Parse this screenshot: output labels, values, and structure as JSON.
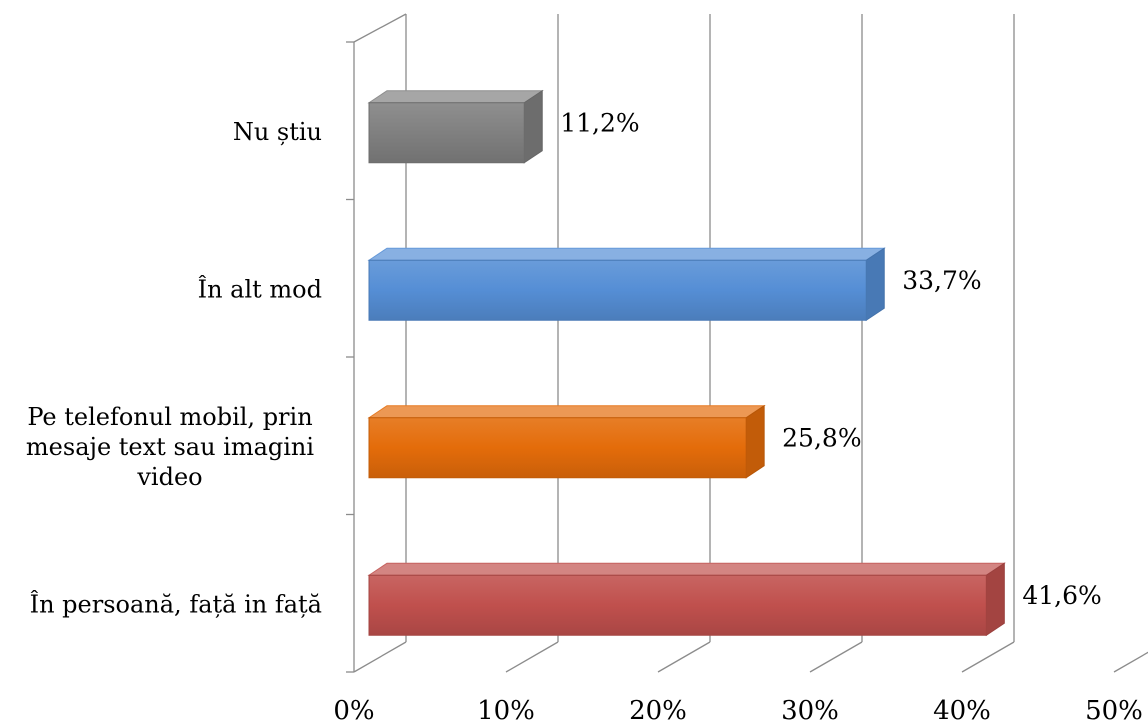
{
  "chart_data": {
    "type": "bar",
    "orientation": "horizontal",
    "style": "3d",
    "categories": [
      "Nu știu",
      "În alt mod",
      "Pe telefonul mobil, prin mesaje text sau imagini video",
      "În persoană, față in față"
    ],
    "category_lines": [
      [
        "Nu știu"
      ],
      [
        "În alt mod"
      ],
      [
        "Pe telefonul mobil, prin",
        "mesaje text sau imagini",
        "video"
      ],
      [
        "În persoană, față in față"
      ]
    ],
    "values": [
      11.2,
      33.7,
      25.8,
      41.6
    ],
    "value_labels": [
      "11,2%",
      "33,7%",
      "25,8%",
      "41,6%"
    ],
    "colors": [
      "#808080",
      "#558ED5",
      "#E46C0A",
      "#C0504D"
    ],
    "xlim": [
      0,
      50
    ],
    "xticks": [
      0,
      10,
      20,
      30,
      40,
      50
    ],
    "xtick_labels": [
      "0%",
      "10%",
      "20%",
      "30%",
      "40%",
      "50%"
    ],
    "title": "",
    "xlabel": "",
    "ylabel": "",
    "grid": true,
    "legend": "none"
  }
}
